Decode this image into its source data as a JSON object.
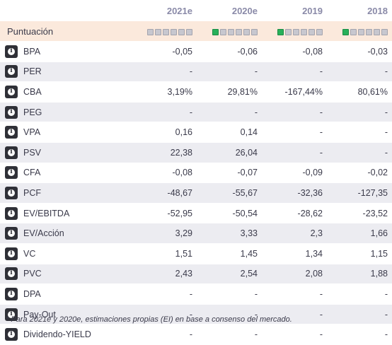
{
  "columns": [
    "2021e",
    "2020e",
    "2019",
    "2018"
  ],
  "score": {
    "label": "Puntuación",
    "levels": [
      0,
      1,
      1,
      1
    ],
    "max": 6,
    "on_color": "#27b05a"
  },
  "rows": [
    {
      "label": "BPA",
      "values": [
        "-0,05",
        "-0,06",
        "-0,08",
        "-0,03"
      ]
    },
    {
      "label": "PER",
      "values": [
        "-",
        "-",
        "-",
        "-"
      ]
    },
    {
      "label": "CBA",
      "values": [
        "3,19%",
        "29,81%",
        "-167,44%",
        "80,61%"
      ]
    },
    {
      "label": "PEG",
      "values": [
        "-",
        "-",
        "-",
        "-"
      ]
    },
    {
      "label": "VPA",
      "values": [
        "0,16",
        "0,14",
        "-",
        "-"
      ]
    },
    {
      "label": "PSV",
      "values": [
        "22,38",
        "26,04",
        "-",
        "-"
      ]
    },
    {
      "label": "CFA",
      "values": [
        "-0,08",
        "-0,07",
        "-0,09",
        "-0,02"
      ]
    },
    {
      "label": "PCF",
      "values": [
        "-48,67",
        "-55,67",
        "-32,36",
        "-127,35"
      ]
    },
    {
      "label": "EV/EBITDA",
      "values": [
        "-52,95",
        "-50,54",
        "-28,62",
        "-23,52"
      ]
    },
    {
      "label": "EV/Acción",
      "values": [
        "3,29",
        "3,33",
        "2,3",
        "1,66"
      ]
    },
    {
      "label": "VC",
      "values": [
        "1,51",
        "1,45",
        "1,34",
        "1,15"
      ]
    },
    {
      "label": "PVC",
      "values": [
        "2,43",
        "2,54",
        "2,08",
        "1,88"
      ]
    },
    {
      "label": "DPA",
      "values": [
        "-",
        "-",
        "-",
        "-"
      ]
    },
    {
      "label": "Pay-Out",
      "values": [
        "-",
        "-",
        "-",
        "-"
      ]
    },
    {
      "label": "Dividendo-YIELD",
      "values": [
        "-",
        "-",
        "-",
        "-"
      ]
    }
  ],
  "footnote": "* Para 2021e y 2020e, estimaciones propias (EI) en base a consenso del mercado."
}
